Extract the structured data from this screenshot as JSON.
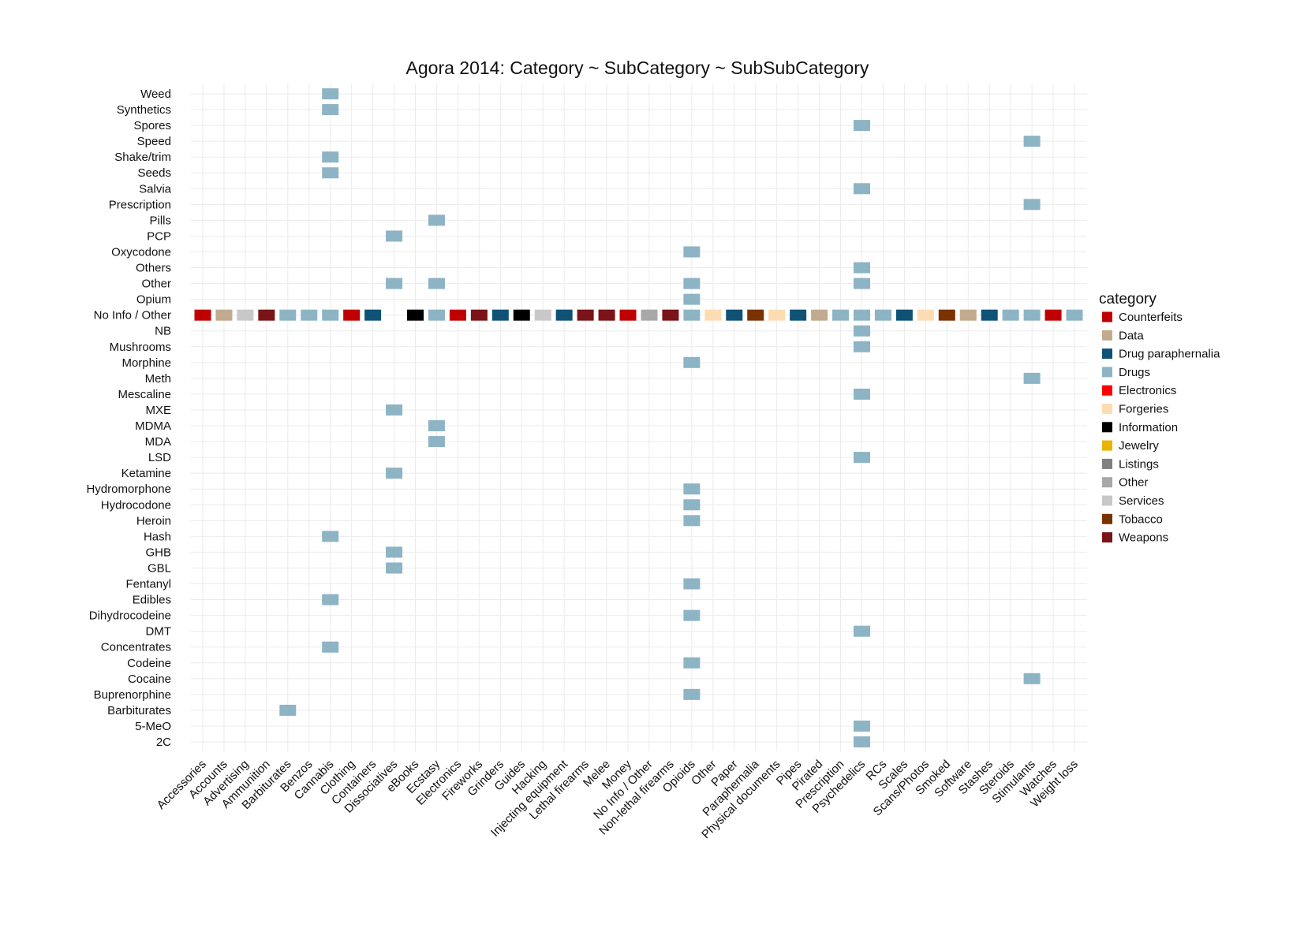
{
  "chart_data": {
    "type": "heatmap",
    "title": "Agora 2014: Category ~ SubCategory ~ SubSubCategory",
    "xlabel": "",
    "ylabel": "",
    "grid": true,
    "legend_position": "right",
    "x_categories": [
      "Accessories",
      "Accounts",
      "Advertising",
      "Ammunition",
      "Barbiturates",
      "Benzos",
      "Cannabis",
      "Clothing",
      "Containers",
      "Dissociatives",
      "eBooks",
      "Ecstasy",
      "Electronics",
      "Fireworks",
      "Grinders",
      "Guides",
      "Hacking",
      "Injecting equipment",
      "Lethal firearms",
      "Melee",
      "Money",
      "No Info / Other",
      "Non-lethal firearms",
      "Opioids",
      "Other",
      "Paper",
      "Paraphernalia",
      "Physical documents",
      "Pipes",
      "Pirated",
      "Prescription",
      "Psychedelics",
      "RCs",
      "Scales",
      "Scans/Photos",
      "Smoked",
      "Software",
      "Stashes",
      "Steroids",
      "Stimulants",
      "Watches",
      "Weight loss"
    ],
    "y_categories": [
      "2C",
      "5-MeO",
      "Barbiturates",
      "Buprenorphine",
      "Cocaine",
      "Codeine",
      "Concentrates",
      "DMT",
      "Dihydrocodeine",
      "Edibles",
      "Fentanyl",
      "GBL",
      "GHB",
      "Hash",
      "Heroin",
      "Hydrocodone",
      "Hydromorphone",
      "Ketamine",
      "LSD",
      "MDA",
      "MDMA",
      "MXE",
      "Mescaline",
      "Meth",
      "Morphine",
      "Mushrooms",
      "NB",
      "No Info / Other",
      "Opium",
      "Other",
      "Others",
      "Oxycodone",
      "PCP",
      "Pills",
      "Prescription",
      "Salvia",
      "Seeds",
      "Shake/trim",
      "Speed",
      "Spores",
      "Synthetics",
      "Weed"
    ],
    "legend": {
      "title": "category",
      "items": [
        {
          "name": "Counterfeits",
          "color": "#c00000"
        },
        {
          "name": "Data",
          "color": "#c2aa8f"
        },
        {
          "name": "Drug paraphernalia",
          "color": "#0f5276"
        },
        {
          "name": "Drugs",
          "color": "#8db4c4"
        },
        {
          "name": "Electronics",
          "color": "#ff0000"
        },
        {
          "name": "Forgeries",
          "color": "#fddcb4"
        },
        {
          "name": "Information",
          "color": "#000000"
        },
        {
          "name": "Jewelry",
          "color": "#e8b400"
        },
        {
          "name": "Listings",
          "color": "#808080"
        },
        {
          "name": "Other",
          "color": "#a8a8a8"
        },
        {
          "name": "Services",
          "color": "#c8c8c8"
        },
        {
          "name": "Tobacco",
          "color": "#7a3300"
        },
        {
          "name": "Weapons",
          "color": "#7a1418"
        }
      ]
    },
    "cells": [
      {
        "x": "Accessories",
        "y": "No Info / Other",
        "category": "Counterfeits"
      },
      {
        "x": "Accounts",
        "y": "No Info / Other",
        "category": "Data"
      },
      {
        "x": "Advertising",
        "y": "No Info / Other",
        "category": "Services"
      },
      {
        "x": "Ammunition",
        "y": "No Info / Other",
        "category": "Weapons"
      },
      {
        "x": "Barbiturates",
        "y": "No Info / Other",
        "category": "Drugs"
      },
      {
        "x": "Barbiturates",
        "y": "Barbiturates",
        "category": "Drugs"
      },
      {
        "x": "Benzos",
        "y": "No Info / Other",
        "category": "Drugs"
      },
      {
        "x": "Cannabis",
        "y": "Weed",
        "category": "Drugs"
      },
      {
        "x": "Cannabis",
        "y": "Synthetics",
        "category": "Drugs"
      },
      {
        "x": "Cannabis",
        "y": "Shake/trim",
        "category": "Drugs"
      },
      {
        "x": "Cannabis",
        "y": "Seeds",
        "category": "Drugs"
      },
      {
        "x": "Cannabis",
        "y": "No Info / Other",
        "category": "Drugs"
      },
      {
        "x": "Cannabis",
        "y": "Hash",
        "category": "Drugs"
      },
      {
        "x": "Cannabis",
        "y": "Edibles",
        "category": "Drugs"
      },
      {
        "x": "Cannabis",
        "y": "Concentrates",
        "category": "Drugs"
      },
      {
        "x": "Clothing",
        "y": "No Info / Other",
        "category": "Counterfeits"
      },
      {
        "x": "Containers",
        "y": "No Info / Other",
        "category": "Drug paraphernalia"
      },
      {
        "x": "Dissociatives",
        "y": "PCP",
        "category": "Drugs"
      },
      {
        "x": "Dissociatives",
        "y": "Other",
        "category": "Drugs"
      },
      {
        "x": "Dissociatives",
        "y": "MXE",
        "category": "Drugs"
      },
      {
        "x": "Dissociatives",
        "y": "Ketamine",
        "category": "Drugs"
      },
      {
        "x": "Dissociatives",
        "y": "GHB",
        "category": "Drugs"
      },
      {
        "x": "Dissociatives",
        "y": "GBL",
        "category": "Drugs"
      },
      {
        "x": "eBooks",
        "y": "No Info / Other",
        "category": "Information"
      },
      {
        "x": "Ecstasy",
        "y": "Pills",
        "category": "Drugs"
      },
      {
        "x": "Ecstasy",
        "y": "Other",
        "category": "Drugs"
      },
      {
        "x": "Ecstasy",
        "y": "No Info / Other",
        "category": "Drugs"
      },
      {
        "x": "Ecstasy",
        "y": "MDMA",
        "category": "Drugs"
      },
      {
        "x": "Ecstasy",
        "y": "MDA",
        "category": "Drugs"
      },
      {
        "x": "Electronics",
        "y": "No Info / Other",
        "category": "Counterfeits"
      },
      {
        "x": "Fireworks",
        "y": "No Info / Other",
        "category": "Weapons"
      },
      {
        "x": "Grinders",
        "y": "No Info / Other",
        "category": "Drug paraphernalia"
      },
      {
        "x": "Guides",
        "y": "No Info / Other",
        "category": "Information"
      },
      {
        "x": "Hacking",
        "y": "No Info / Other",
        "category": "Services"
      },
      {
        "x": "Injecting equipment",
        "y": "No Info / Other",
        "category": "Drug paraphernalia"
      },
      {
        "x": "Lethal firearms",
        "y": "No Info / Other",
        "category": "Weapons"
      },
      {
        "x": "Melee",
        "y": "No Info / Other",
        "category": "Weapons"
      },
      {
        "x": "Money",
        "y": "No Info / Other",
        "category": "Counterfeits"
      },
      {
        "x": "No Info / Other",
        "y": "No Info / Other",
        "category": "Other"
      },
      {
        "x": "Non-lethal firearms",
        "y": "No Info / Other",
        "category": "Weapons"
      },
      {
        "x": "Opioids",
        "y": "Oxycodone",
        "category": "Drugs"
      },
      {
        "x": "Opioids",
        "y": "Other",
        "category": "Drugs"
      },
      {
        "x": "Opioids",
        "y": "Opium",
        "category": "Drugs"
      },
      {
        "x": "Opioids",
        "y": "No Info / Other",
        "category": "Drugs"
      },
      {
        "x": "Opioids",
        "y": "Morphine",
        "category": "Drugs"
      },
      {
        "x": "Opioids",
        "y": "Hydromorphone",
        "category": "Drugs"
      },
      {
        "x": "Opioids",
        "y": "Hydrocodone",
        "category": "Drugs"
      },
      {
        "x": "Opioids",
        "y": "Heroin",
        "category": "Drugs"
      },
      {
        "x": "Opioids",
        "y": "Fentanyl",
        "category": "Drugs"
      },
      {
        "x": "Opioids",
        "y": "Dihydrocodeine",
        "category": "Drugs"
      },
      {
        "x": "Opioids",
        "y": "Codeine",
        "category": "Drugs"
      },
      {
        "x": "Opioids",
        "y": "Buprenorphine",
        "category": "Drugs"
      },
      {
        "x": "Other",
        "y": "No Info / Other",
        "category": "Forgeries"
      },
      {
        "x": "Paper",
        "y": "No Info / Other",
        "category": "Drug paraphernalia"
      },
      {
        "x": "Paraphernalia",
        "y": "No Info / Other",
        "category": "Tobacco"
      },
      {
        "x": "Physical documents",
        "y": "No Info / Other",
        "category": "Forgeries"
      },
      {
        "x": "Pipes",
        "y": "No Info / Other",
        "category": "Drug paraphernalia"
      },
      {
        "x": "Pirated",
        "y": "No Info / Other",
        "category": "Data"
      },
      {
        "x": "Prescription",
        "y": "No Info / Other",
        "category": "Drugs"
      },
      {
        "x": "Psychedelics",
        "y": "Spores",
        "category": "Drugs"
      },
      {
        "x": "Psychedelics",
        "y": "Salvia",
        "category": "Drugs"
      },
      {
        "x": "Psychedelics",
        "y": "Others",
        "category": "Drugs"
      },
      {
        "x": "Psychedelics",
        "y": "Other",
        "category": "Drugs"
      },
      {
        "x": "Psychedelics",
        "y": "No Info / Other",
        "category": "Drugs"
      },
      {
        "x": "Psychedelics",
        "y": "NB",
        "category": "Drugs"
      },
      {
        "x": "Psychedelics",
        "y": "Mushrooms",
        "category": "Drugs"
      },
      {
        "x": "Psychedelics",
        "y": "Mescaline",
        "category": "Drugs"
      },
      {
        "x": "Psychedelics",
        "y": "LSD",
        "category": "Drugs"
      },
      {
        "x": "Psychedelics",
        "y": "DMT",
        "category": "Drugs"
      },
      {
        "x": "Psychedelics",
        "y": "5-MeO",
        "category": "Drugs"
      },
      {
        "x": "Psychedelics",
        "y": "2C",
        "category": "Drugs"
      },
      {
        "x": "RCs",
        "y": "No Info / Other",
        "category": "Drugs"
      },
      {
        "x": "Scales",
        "y": "No Info / Other",
        "category": "Drug paraphernalia"
      },
      {
        "x": "Scans/Photos",
        "y": "No Info / Other",
        "category": "Forgeries"
      },
      {
        "x": "Smoked",
        "y": "No Info / Other",
        "category": "Tobacco"
      },
      {
        "x": "Software",
        "y": "No Info / Other",
        "category": "Data"
      },
      {
        "x": "Stashes",
        "y": "No Info / Other",
        "category": "Drug paraphernalia"
      },
      {
        "x": "Steroids",
        "y": "No Info / Other",
        "category": "Drugs"
      },
      {
        "x": "Stimulants",
        "y": "Speed",
        "category": "Drugs"
      },
      {
        "x": "Stimulants",
        "y": "Prescription",
        "category": "Drugs"
      },
      {
        "x": "Stimulants",
        "y": "No Info / Other",
        "category": "Drugs"
      },
      {
        "x": "Stimulants",
        "y": "Meth",
        "category": "Drugs"
      },
      {
        "x": "Stimulants",
        "y": "Cocaine",
        "category": "Drugs"
      },
      {
        "x": "Watches",
        "y": "No Info / Other",
        "category": "Counterfeits"
      },
      {
        "x": "Weight loss",
        "y": "No Info / Other",
        "category": "Drugs"
      }
    ]
  }
}
